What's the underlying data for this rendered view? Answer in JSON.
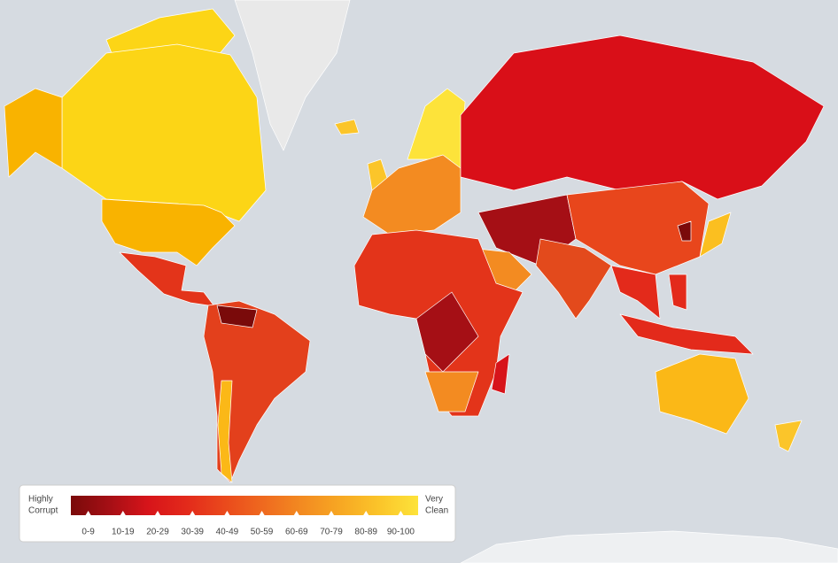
{
  "legend": {
    "low_label": [
      "Highly",
      "Corrupt"
    ],
    "high_label": [
      "Very",
      "Clean"
    ],
    "bins": [
      {
        "label": "0-9",
        "color": "#7a0a0a"
      },
      {
        "label": "10-19",
        "color": "#a50f15"
      },
      {
        "label": "20-29",
        "color": "#d7141a"
      },
      {
        "label": "30-39",
        "color": "#e32a1b"
      },
      {
        "label": "40-49",
        "color": "#ea4a1c"
      },
      {
        "label": "50-59",
        "color": "#ef6a1f"
      },
      {
        "label": "60-69",
        "color": "#f38b21"
      },
      {
        "label": "70-79",
        "color": "#f7a823"
      },
      {
        "label": "80-89",
        "color": "#fbc52a"
      },
      {
        "label": "90-100",
        "color": "#fde33a"
      }
    ]
  }
}
